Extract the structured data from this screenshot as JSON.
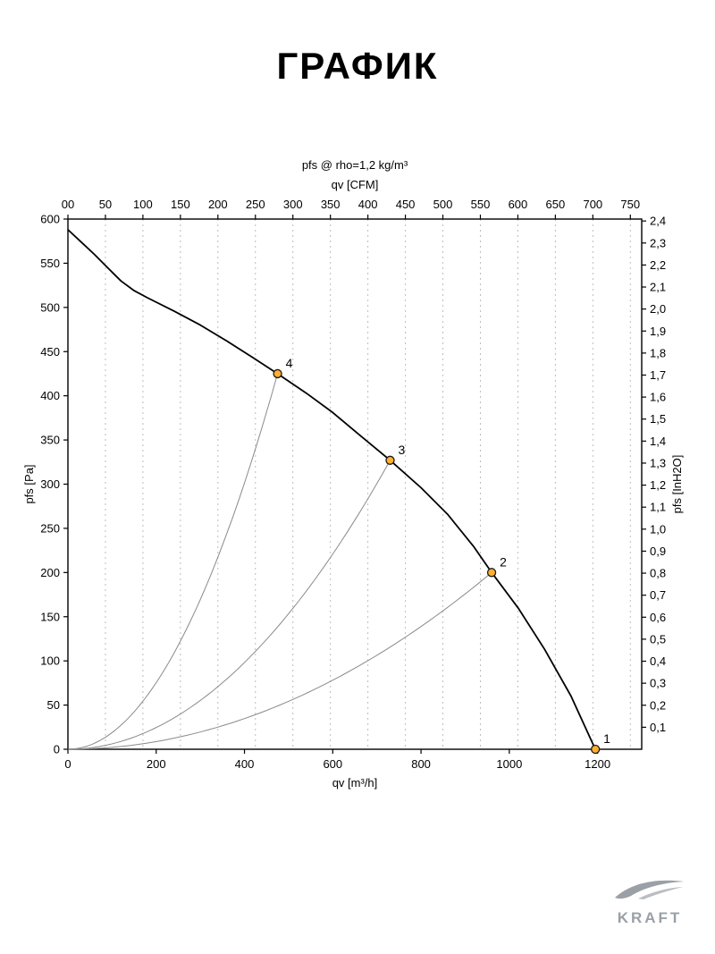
{
  "page": {
    "title": "ГРАФИК"
  },
  "logo": {
    "brand": "KRAFT"
  },
  "chart_data": {
    "type": "line",
    "top_title": "pfs @ rho=1,2 kg/m³",
    "axes": {
      "x_bottom": {
        "label": "qv [m³/h]",
        "min": 0,
        "max": 1300,
        "ticks": [
          0,
          200,
          400,
          600,
          800,
          1000,
          1200
        ],
        "tick_labels": [
          "0",
          "200",
          "400",
          "600",
          "800",
          "1000",
          "1200"
        ]
      },
      "x_top": {
        "label": "qv [CFM]",
        "min": 0,
        "max": 765.2,
        "cfm_per_m3h": 0.588578,
        "ticks": [
          0,
          50,
          100,
          150,
          200,
          250,
          300,
          350,
          400,
          450,
          500,
          550,
          600,
          650,
          700,
          750
        ],
        "tick_labels": [
          "00",
          "50",
          "100",
          "150",
          "200",
          "250",
          "300",
          "350",
          "400",
          "450",
          "500",
          "550",
          "600",
          "650",
          "700",
          "750"
        ]
      },
      "y_left": {
        "label": "pfs [Pa]",
        "min": 0,
        "max": 600,
        "ticks": [
          0,
          50,
          100,
          150,
          200,
          250,
          300,
          350,
          400,
          450,
          500,
          550,
          600
        ]
      },
      "y_right": {
        "label": "pfs [InH2O]",
        "pa_per_unit": 249.089,
        "decimal_comma": true,
        "ticks": [
          0.1,
          0.2,
          0.3,
          0.4,
          0.5,
          0.6,
          0.7,
          0.8,
          0.9,
          1.0,
          1.1,
          1.2,
          1.3,
          1.4,
          1.5,
          1.6,
          1.7,
          1.8,
          1.9,
          2.0,
          2.1,
          2.2,
          2.3,
          2.4
        ]
      }
    },
    "fan_curve": {
      "color": "#000000",
      "points": [
        [
          0,
          588
        ],
        [
          30,
          574
        ],
        [
          60,
          560
        ],
        [
          90,
          545
        ],
        [
          120,
          530
        ],
        [
          150,
          519
        ],
        [
          180,
          511
        ],
        [
          240,
          496
        ],
        [
          300,
          480
        ],
        [
          360,
          462
        ],
        [
          420,
          443
        ],
        [
          475,
          425
        ],
        [
          540,
          403
        ],
        [
          600,
          381
        ],
        [
          660,
          356
        ],
        [
          730,
          327
        ],
        [
          800,
          296
        ],
        [
          860,
          266
        ],
        [
          920,
          229
        ],
        [
          960,
          200
        ],
        [
          1020,
          160
        ],
        [
          1080,
          113
        ],
        [
          1140,
          60
        ],
        [
          1195,
          0
        ]
      ]
    },
    "operating_points": [
      {
        "label": "1",
        "qv": 1195,
        "pfs": 0
      },
      {
        "label": "2",
        "qv": 960,
        "pfs": 200
      },
      {
        "label": "3",
        "qv": 730,
        "pfs": 327
      },
      {
        "label": "4",
        "qv": 475,
        "pfs": 425
      }
    ],
    "system_curve_color": "#8a8a8a",
    "marker": {
      "fill": "#ffb02e",
      "stroke": "#1a1a1a",
      "radius": 4.5
    },
    "grid": {
      "vertical_dashed": true,
      "color": "#bdbdbd"
    }
  }
}
